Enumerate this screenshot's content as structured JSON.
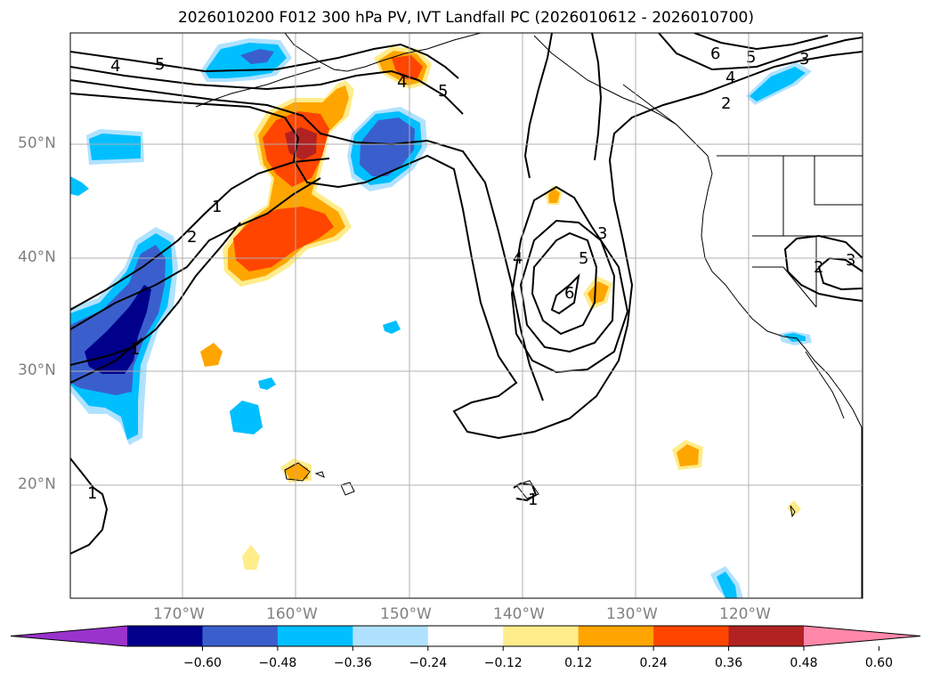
{
  "title": "2026010200 F012 300 hPa PV, IVT Landfall PC (2026010612 - 2026010700)",
  "lat_labels": [
    "50°N",
    "40°N",
    "30°N",
    "20°N"
  ],
  "lon_labels": [
    "170°W",
    "160°W",
    "150°W",
    "140°W",
    "130°W",
    "120°W"
  ],
  "colorbar": {
    "ticks": [
      "−0.60",
      "−0.48",
      "−0.36",
      "−0.24",
      "−0.12",
      "0.12",
      "0.24",
      "0.36",
      "0.48",
      "0.60"
    ],
    "colors": [
      "#9933cc",
      "#00008b",
      "#3a5fcd",
      "#00bfff",
      "#b0e2ff",
      "#ffffff",
      "#ffec8b",
      "#ffa500",
      "#ff4500",
      "#b22222",
      "#ff88aa"
    ]
  },
  "contour_labels": [
    "4",
    "5",
    "4",
    "5",
    "6",
    "5",
    "4",
    "3",
    "2",
    "1",
    "2",
    "1",
    "4",
    "5",
    "6",
    "3",
    "2",
    "3",
    "1",
    "1"
  ]
}
